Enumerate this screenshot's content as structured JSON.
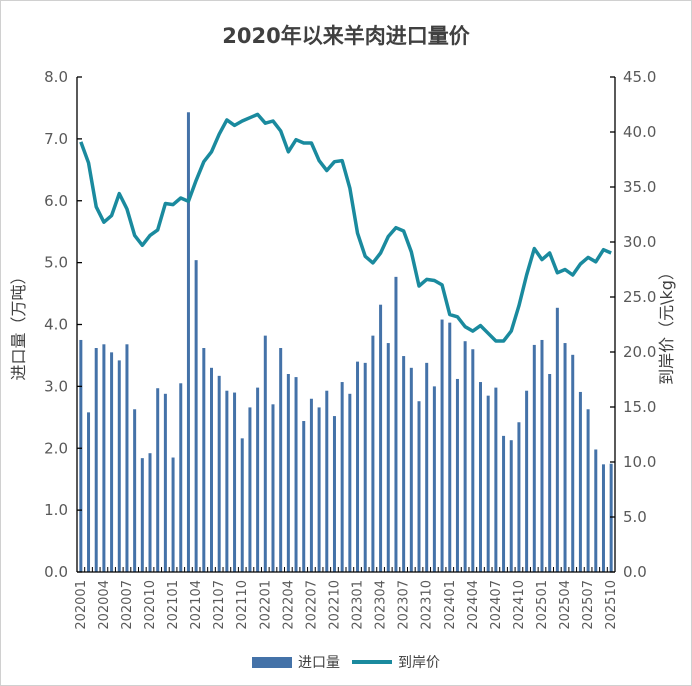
{
  "chart_data": {
    "type": "bar+line",
    "title": "2020年以来羊肉进口量价",
    "ylabel_left": "进口量（万吨）",
    "ylabel_right": "到岸价（元\\kg）",
    "ylim_left": [
      0,
      8
    ],
    "ylim_right": [
      0,
      45
    ],
    "yticks_left": [
      "0.0",
      "1.0",
      "2.0",
      "3.0",
      "4.0",
      "5.0",
      "6.0",
      "7.0",
      "8.0"
    ],
    "yticks_right": [
      "0.0",
      "5.0",
      "10.0",
      "15.0",
      "20.0",
      "25.0",
      "30.0",
      "35.0",
      "40.0",
      "45.0"
    ],
    "grid": false,
    "legend_position": "bottom",
    "colors": {
      "bar": "#4472a8",
      "line": "#1a8a9e"
    },
    "x": [
      "202001",
      "202002",
      "202003",
      "202004",
      "202005",
      "202006",
      "202007",
      "202008",
      "202009",
      "202010",
      "202011",
      "202012",
      "202101",
      "202102",
      "202103",
      "202104",
      "202105",
      "202106",
      "202107",
      "202108",
      "202109",
      "202110",
      "202111",
      "202112",
      "202201",
      "202202",
      "202203",
      "202204",
      "202205",
      "202206",
      "202207",
      "202208",
      "202209",
      "202210",
      "202211",
      "202212",
      "202301",
      "202302",
      "202303",
      "202304",
      "202305",
      "202306",
      "202307",
      "202308",
      "202309",
      "202310",
      "202311",
      "202312",
      "202401",
      "202402",
      "202403",
      "202404",
      "202405",
      "202406",
      "202407",
      "202408",
      "202409",
      "202410",
      "202411",
      "202412",
      "202501",
      "202502",
      "202503",
      "202504",
      "202505",
      "202506",
      "202507",
      "202508",
      "202509",
      "202510"
    ],
    "xtick_labels": [
      "202001",
      "202004",
      "202007",
      "202010",
      "202101",
      "202104",
      "202107",
      "202110",
      "202201",
      "202204",
      "202207",
      "202210",
      "202301",
      "202304",
      "202307",
      "202310",
      "202401",
      "202404",
      "202407",
      "202410",
      "202501",
      "202504",
      "202507",
      "202510"
    ],
    "series": [
      {
        "name": "进口量",
        "type": "bar",
        "axis": "left",
        "values": [
          3.75,
          2.58,
          3.62,
          3.68,
          3.55,
          3.42,
          3.68,
          2.63,
          1.84,
          1.92,
          2.97,
          2.88,
          1.85,
          3.05,
          7.43,
          5.04,
          3.62,
          3.3,
          3.17,
          2.93,
          2.9,
          2.16,
          2.66,
          2.98,
          3.82,
          2.71,
          3.62,
          3.2,
          3.15,
          2.44,
          2.8,
          2.66,
          2.93,
          2.52,
          3.07,
          2.88,
          3.4,
          3.38,
          3.82,
          4.32,
          3.7,
          4.77,
          3.49,
          3.3,
          2.76,
          3.38,
          3.0,
          4.08,
          4.03,
          3.12,
          3.73,
          3.6,
          3.07,
          2.85,
          2.98,
          2.2,
          2.13,
          2.42,
          2.93,
          3.67,
          3.75,
          3.2,
          4.27,
          3.7,
          3.51,
          2.91,
          2.63,
          1.98,
          1.74,
          1.75
        ]
      },
      {
        "name": "到岸价",
        "type": "line",
        "axis": "right",
        "values": [
          39.1,
          37.2,
          33.2,
          31.8,
          32.4,
          34.4,
          33.0,
          30.6,
          29.7,
          30.6,
          31.1,
          33.5,
          33.4,
          34.0,
          33.7,
          35.6,
          37.3,
          38.2,
          39.8,
          41.1,
          40.6,
          41.0,
          41.3,
          41.6,
          40.8,
          41.0,
          40.1,
          38.2,
          39.3,
          39.0,
          39.0,
          37.4,
          36.5,
          37.3,
          37.4,
          34.9,
          30.8,
          28.7,
          28.1,
          29.0,
          30.5,
          31.3,
          31.0,
          29.1,
          26.0,
          26.6,
          26.5,
          26.1,
          23.4,
          23.2,
          22.3,
          21.9,
          22.4,
          21.7,
          21.0,
          21.0,
          21.9,
          24.2,
          27.0,
          29.4,
          28.4,
          29.0,
          27.2,
          27.5,
          27.0,
          28.0,
          28.6,
          28.2,
          29.3,
          29.0
        ]
      }
    ]
  }
}
